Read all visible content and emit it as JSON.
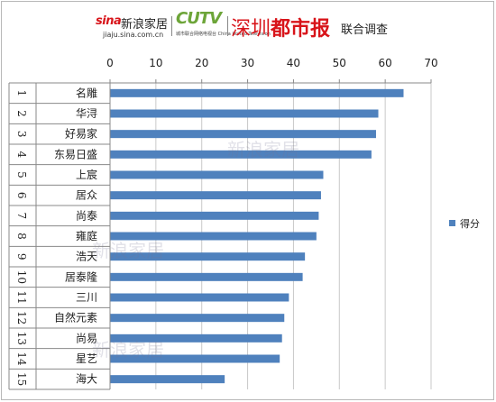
{
  "header": {
    "sina_brand": "sina",
    "sina_name": "新浪家居",
    "sina_url": "jiaju.sina.com.cn",
    "cutv_name": "CUTV",
    "cutv_sub": "城市联合网络电视台 China United Television",
    "paper_part1": "深圳",
    "paper_part2": "都市报",
    "joint_label": "联合调查"
  },
  "watermarks": [
    "新浪家居",
    "新浪家居",
    "新浪家居"
  ],
  "colors": {
    "bar": "#4f81bd",
    "grid": "#c8c8c8",
    "axis": "#888888"
  },
  "chart_data": {
    "type": "bar",
    "orientation": "horizontal",
    "title": "",
    "xlabel": "",
    "ylabel": "",
    "xlim": [
      0,
      70
    ],
    "x_ticks": [
      0,
      10,
      20,
      30,
      40,
      50,
      60,
      70
    ],
    "x_axis_position": "top",
    "gridlines": true,
    "legend_position": "right",
    "ranks": [
      "1",
      "2",
      "3",
      "4",
      "5",
      "6",
      "7",
      "8",
      "9",
      "10",
      "11",
      "12",
      "13",
      "14",
      "15"
    ],
    "categories": [
      "名雕",
      "华浔",
      "好易家",
      "东易日盛",
      "上宸",
      "居众",
      "尚泰",
      "雍庭",
      "浩天",
      "居泰隆",
      "三川",
      "自然元素",
      "尚易",
      "星艺",
      "海大"
    ],
    "series": [
      {
        "name": "得分",
        "values": [
          64,
          58.5,
          58,
          57,
          46.5,
          46,
          45.5,
          45,
          42.5,
          42,
          39,
          38,
          37.5,
          37,
          25
        ]
      }
    ]
  }
}
